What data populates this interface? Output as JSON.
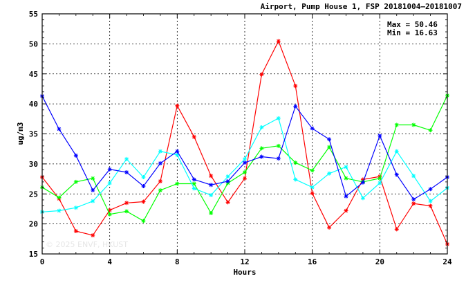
{
  "chart_data": {
    "type": "line",
    "title": "Airport, Pump House 1, FSP 20181004–20181007",
    "xlabel": "Hours",
    "ylabel": "ug/m3",
    "xlim": [
      0,
      24
    ],
    "ylim": [
      15,
      55
    ],
    "xticks": [
      "0",
      "4",
      "8",
      "12",
      "16",
      "20",
      "24"
    ],
    "yticks": [
      "15",
      "20",
      "25",
      "30",
      "35",
      "40",
      "45",
      "50",
      "55"
    ],
    "grid": true,
    "max_label": "Max = 50.46",
    "min_label": "Min = 16.63",
    "watermark": "© 2025 ENVF, HKUST",
    "x": [
      0,
      1,
      2,
      3,
      4,
      5,
      6,
      7,
      8,
      9,
      10,
      11,
      12,
      13,
      14,
      15,
      16,
      17,
      18,
      19,
      20,
      21,
      22,
      23,
      24
    ],
    "series": [
      {
        "color": "#ff0000",
        "values": [
          27.8,
          24.2,
          18.8,
          18.1,
          22.3,
          23.5,
          23.7,
          27.1,
          39.7,
          34.5,
          28.0,
          23.6,
          27.6,
          44.9,
          50.46,
          43.0,
          25.1,
          19.4,
          22.2,
          27.4,
          27.9,
          19.1,
          23.4,
          23.0,
          16.63
        ]
      },
      {
        "color": "#00ff00",
        "values": [
          26.1,
          24.4,
          27.0,
          27.6,
          21.6,
          22.1,
          20.5,
          25.6,
          26.7,
          26.7,
          21.8,
          26.8,
          28.6,
          32.6,
          33.0,
          30.2,
          28.9,
          32.8,
          27.6,
          27.0,
          27.6,
          36.5,
          36.5,
          35.6,
          41.4
        ]
      },
      {
        "color": "#00ffff",
        "values": [
          22.0,
          22.2,
          22.7,
          23.8,
          26.8,
          30.8,
          27.8,
          32.1,
          31.5,
          25.9,
          24.8,
          27.9,
          30.8,
          36.1,
          37.6,
          27.4,
          26.1,
          28.4,
          29.5,
          24.3,
          26.8,
          32.1,
          28.0,
          23.8,
          26.0
        ]
      },
      {
        "color": "#0000ff",
        "values": [
          41.3,
          35.8,
          31.4,
          25.6,
          29.1,
          28.6,
          26.3,
          30.1,
          32.1,
          27.4,
          26.5,
          27.1,
          30.2,
          31.2,
          30.9,
          39.6,
          35.9,
          34.1,
          24.6,
          26.9,
          34.7,
          28.2,
          24.1,
          25.8,
          27.8
        ]
      }
    ]
  }
}
